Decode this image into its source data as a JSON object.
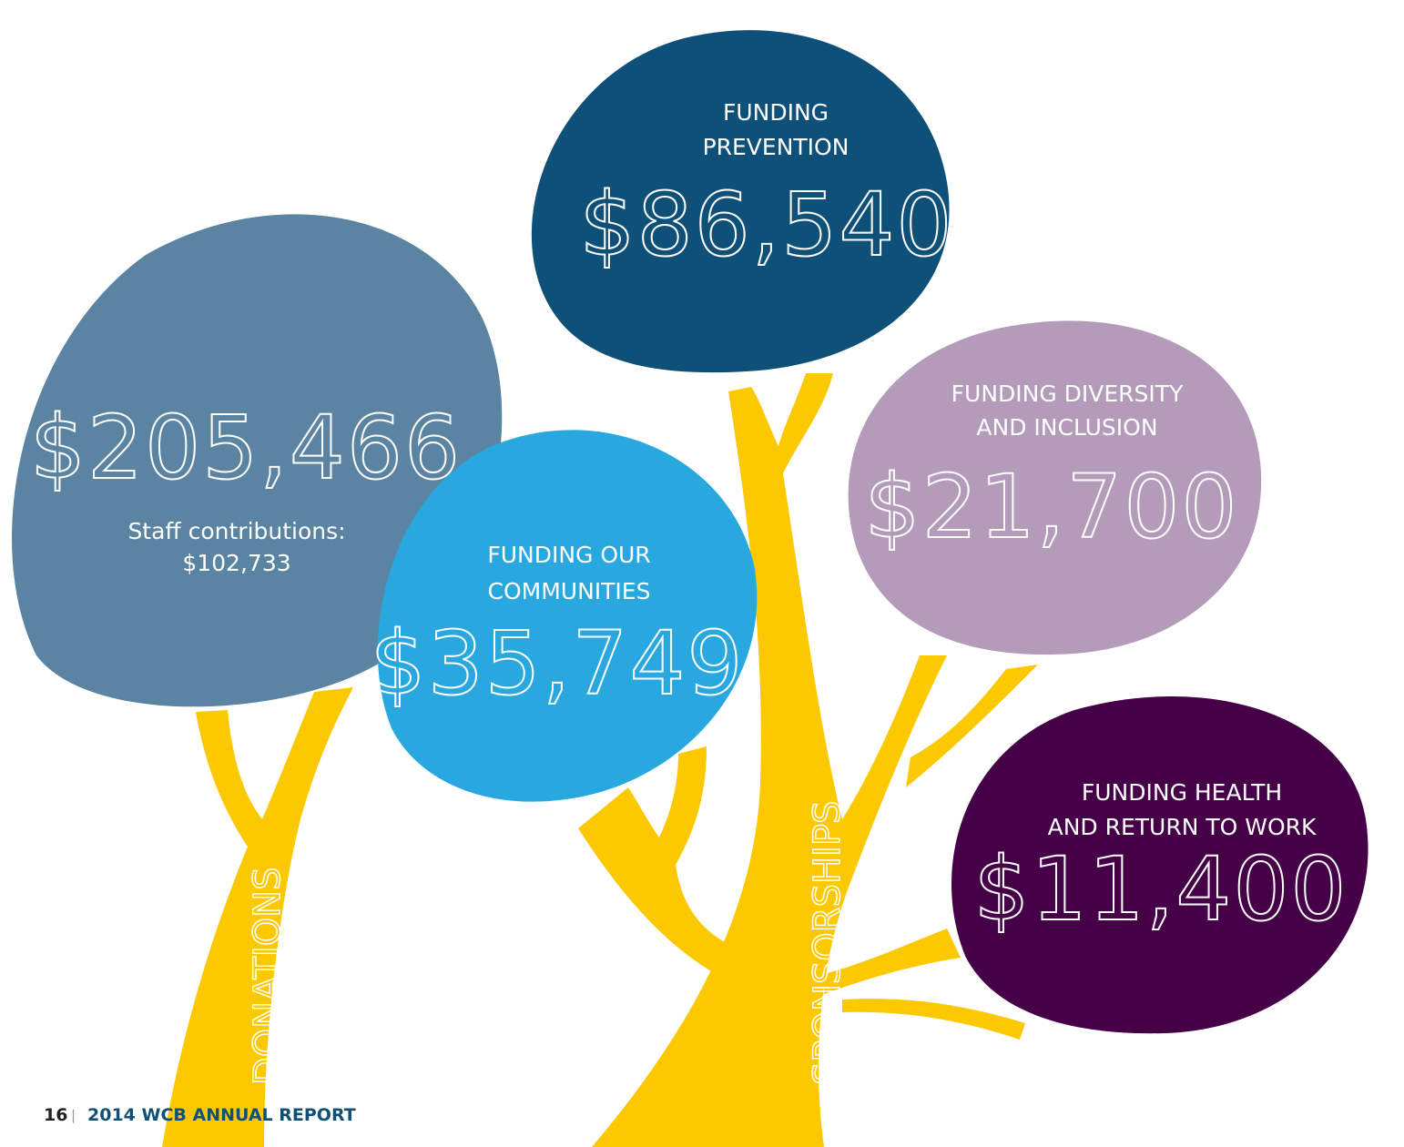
{
  "bubbles": [
    {
      "amount": "$205,466",
      "note": [
        "Staff contributions:",
        "$102,733"
      ]
    },
    {
      "label": [
        "FUNDING",
        "PREVENTION"
      ],
      "amount": "$86,540"
    },
    {
      "label": [
        "FUNDING OUR",
        "COMMUNITIES"
      ],
      "amount": "$35,749"
    },
    {
      "label": [
        "FUNDING DIVERSITY",
        "AND INCLUSION"
      ],
      "amount": "$21,700"
    },
    {
      "label": [
        "FUNDING HEALTH",
        "AND RETURN TO WORK"
      ],
      "amount": "$11,400"
    }
  ],
  "trunks": [
    "DONATIONS",
    "SPONSORSHIPS"
  ],
  "footer": {
    "page": "16",
    "separator": "|",
    "title": "2014 WCB ANNUAL REPORT"
  }
}
